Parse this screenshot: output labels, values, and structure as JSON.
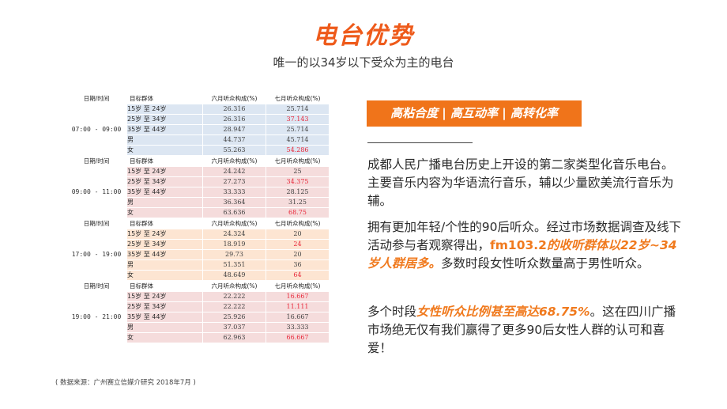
{
  "title": "电台优势",
  "subtitle": "唯一的以34岁以下受众为主的电台",
  "table": {
    "headers": {
      "time": "日期/时间",
      "group": "目标群体",
      "june": "六月听众构成(%)",
      "july": "七月听众构成(%)"
    },
    "blocks": [
      {
        "time": "07:00 - 09:00",
        "rows": [
          {
            "group": "15岁 至 24岁",
            "june": "26.316",
            "july": "25.714"
          },
          {
            "group": "25岁 至 34岁",
            "june": "26.316",
            "july": "37.143"
          },
          {
            "group": "35岁 至 44岁",
            "june": "28.947",
            "july": "25.714"
          },
          {
            "group": "男",
            "june": "44.737",
            "july": "45.714"
          },
          {
            "group": "女",
            "june": "55.263",
            "july": "54.286"
          }
        ]
      },
      {
        "time": "09:00 - 11:00",
        "rows": [
          {
            "group": "15岁 至 24岁",
            "june": "24.242",
            "july": "25"
          },
          {
            "group": "25岁 至 34岁",
            "june": "27.273",
            "july": "34.375"
          },
          {
            "group": "35岁 至 44岁",
            "june": "33.333",
            "july": "28.125"
          },
          {
            "group": "男",
            "june": "36.364",
            "july": "31.25"
          },
          {
            "group": "女",
            "june": "63.636",
            "july": "68.75"
          }
        ]
      },
      {
        "time": "17:00 - 19:00",
        "rows": [
          {
            "group": "15岁 至 24岁",
            "june": "24.324",
            "july": "20"
          },
          {
            "group": "25岁 至 34岁",
            "june": "18.919",
            "july": "24"
          },
          {
            "group": "35岁 至 44岁",
            "june": "29.73",
            "july": "20"
          },
          {
            "group": "男",
            "june": "51.351",
            "july": "36"
          },
          {
            "group": "女",
            "june": "48.649",
            "july": "64"
          }
        ]
      },
      {
        "time": "19:00 - 21:00",
        "rows": [
          {
            "group": "15岁 至 24岁",
            "june": "22.222",
            "july": "16.667"
          },
          {
            "group": "25岁 至 34岁",
            "june": "22.222",
            "july": "11.111"
          },
          {
            "group": "35岁 至 44岁",
            "june": "25.926",
            "july": "16.667"
          },
          {
            "group": "男",
            "june": "37.037",
            "july": "33.333"
          },
          {
            "group": "女",
            "june": "62.963",
            "july": "66.667"
          }
        ]
      }
    ]
  },
  "source": "( 数据来源：广州赛立信媒介研究 2018年7月 )",
  "banner": "高粘合度 | 高互动率 | 高转化率",
  "paragraphs": {
    "p1": "成都人民广播电台历史上开设的第二家类型化音乐电台。主要音乐内容为华语流行音乐，辅以少量欧美流行音乐为辅。",
    "p2_a": "拥有更加年轻/个性的90后听众。经过市场数据调查及线下活动参与者观察得出，",
    "p2_b": "fm103.2",
    "p2_c": "的收听群体以22岁~34岁人群居多。",
    "p2_d": "多数时段女性听众数量高于男性听众。",
    "p3_a": "多个时段",
    "p3_b": "女性听众比例甚至高达68.75%",
    "p3_c": "。这在四川广播市场绝无仅有我们赢得了更多90后女性人群的认可和喜爱！"
  },
  "colors": {
    "accent": "#ee5a1a",
    "banner": "#f0741a",
    "highlight_red": "#e8273a",
    "block_blue": "#dce6f2",
    "block_pink": "#f5dcdc",
    "block_peach": "#fde5d2"
  }
}
